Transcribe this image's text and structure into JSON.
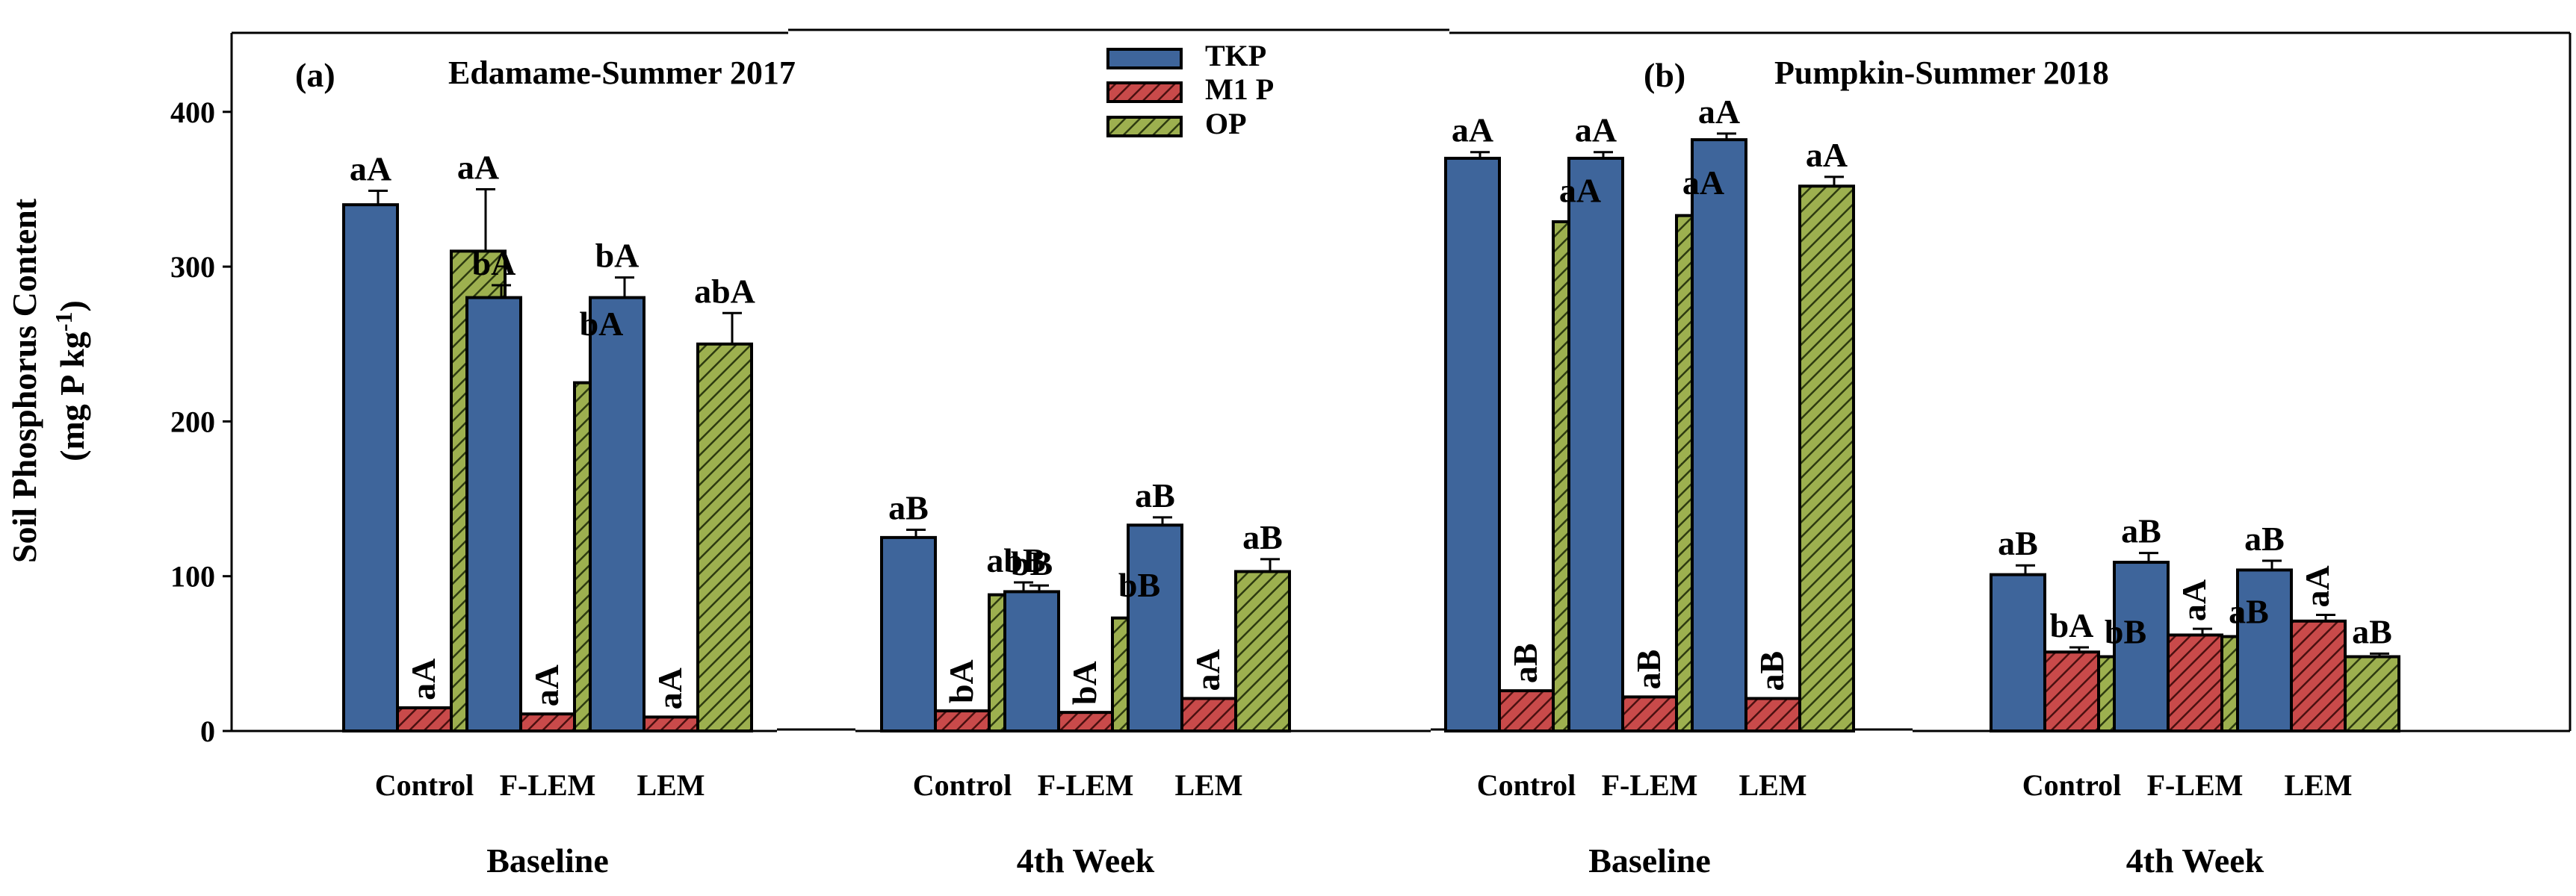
{
  "chart_data": {
    "type": "bar",
    "ylabel_line1": "Soil Phosphorus Content",
    "ylabel_line2_main": "(mg P kg",
    "ylabel_line2_sup": "-1",
    "ylabel_line2_end": ")",
    "ylim": [
      0,
      450
    ],
    "yticks": [
      "0",
      "100",
      "200",
      "300",
      "400"
    ],
    "series_names": [
      "TKP",
      "M1 P",
      "OP"
    ],
    "series_colors": [
      "#3e659b",
      "#c94a4a",
      "#9db04f"
    ],
    "panels": [
      {
        "tag": "(a)",
        "title": "Edamame-Summer 2017"
      },
      {
        "tag": "(b)",
        "title": "Pumpkin-Summer 2018"
      }
    ],
    "groups": [
      {
        "label": "Baseline",
        "categories": [
          "Control",
          "F-LEM",
          "LEM"
        ],
        "values": {
          "TKP": [
            340,
            280,
            280
          ],
          "M1 P": [
            15,
            11,
            9
          ],
          "OP": [
            310,
            225,
            250
          ]
        },
        "errors": {
          "TKP": [
            9,
            8,
            13
          ],
          "M1 P": [
            0,
            0,
            0
          ],
          "OP": [
            40,
            24,
            20
          ]
        },
        "sig": {
          "TKP": [
            "aA",
            "bA",
            "bA"
          ],
          "M1 P": [
            "aA",
            "aA",
            "aA"
          ],
          "OP": [
            "aA",
            "bA",
            "abA"
          ]
        }
      },
      {
        "label": "4th Week",
        "categories": [
          "Control",
          "F-LEM",
          "LEM"
        ],
        "values": {
          "TKP": [
            125,
            90,
            133
          ],
          "M1 P": [
            13,
            12,
            21
          ],
          "OP": [
            88,
            73,
            103
          ]
        },
        "errors": {
          "TKP": [
            5,
            4,
            5
          ],
          "M1 P": [
            0,
            0,
            0
          ],
          "OP": [
            8,
            7,
            8
          ]
        },
        "sig": {
          "TKP": [
            "aB",
            "bB",
            "aB"
          ],
          "M1 P": [
            "bA",
            "bA",
            "aA"
          ],
          "OP": [
            "abB",
            "bB",
            "aB"
          ]
        }
      },
      {
        "label": "Baseline",
        "categories": [
          "Control",
          "F-LEM",
          "LEM"
        ],
        "values": {
          "TKP": [
            370,
            370,
            382
          ],
          "M1 P": [
            26,
            22,
            21
          ],
          "OP": [
            329,
            333,
            352
          ]
        },
        "errors": {
          "TKP": [
            4,
            4,
            4
          ],
          "M1 P": [
            0,
            0,
            0
          ],
          "OP": [
            6,
            7,
            6
          ]
        },
        "sig": {
          "TKP": [
            "aA",
            "aA",
            "aA"
          ],
          "M1 P": [
            "aB",
            "aB",
            "aB"
          ],
          "OP": [
            "aA",
            "aA",
            "aA"
          ]
        }
      },
      {
        "label": "4th Week",
        "categories": [
          "Control",
          "F-LEM",
          "LEM"
        ],
        "values": {
          "TKP": [
            101,
            109,
            104
          ],
          "M1 P": [
            51,
            62,
            71
          ],
          "OP": [
            48,
            61,
            48
          ]
        },
        "errors": {
          "TKP": [
            6,
            6,
            6
          ],
          "M1 P": [
            3,
            4,
            4
          ],
          "OP": [
            2,
            2,
            2
          ]
        },
        "sig": {
          "TKP": [
            "aB",
            "aB",
            "aB"
          ],
          "M1 P": [
            "bA",
            "aA",
            "aA"
          ],
          "OP": [
            "bB",
            "aB",
            "aB"
          ]
        }
      }
    ]
  }
}
